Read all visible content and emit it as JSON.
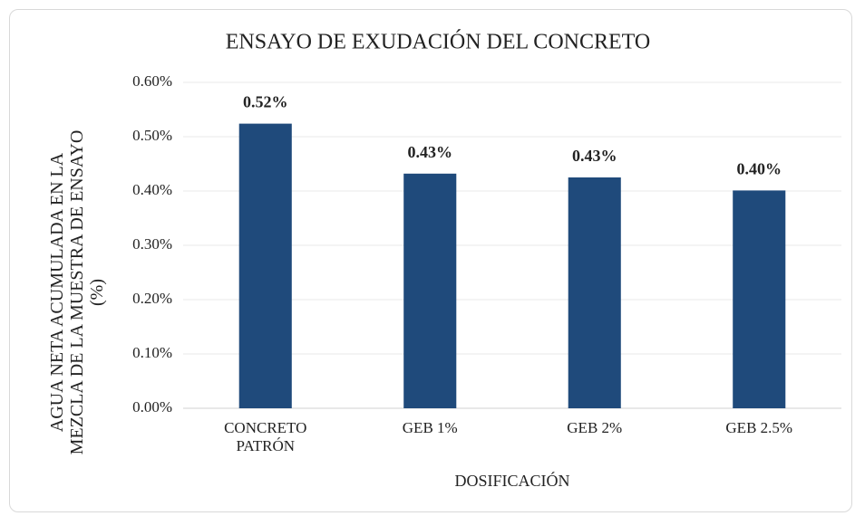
{
  "chart_data": {
    "type": "bar",
    "title": "ENSAYO DE EXUDACIÓN DEL CONCRETO",
    "x_label": "DOSIFICACIÓN",
    "y_label": "AGUA NETA ACUMULADA EN LA MEZCLA DE LA MUESTRA DE ENSAYO (%)",
    "categories": [
      "CONCRETO PATRÓN",
      "GEB 1%",
      "GEB 2%",
      "GEB 2.5%"
    ],
    "values": [
      0.524,
      0.432,
      0.425,
      0.401
    ],
    "value_labels": [
      "0.52%",
      "0.43%",
      "0.43%",
      "0.40%"
    ],
    "color": "#1f4a7b",
    "ylim": [
      0,
      0.6
    ],
    "yticks": [
      {
        "value": 0,
        "label": "0.00%"
      },
      {
        "value": 0.1,
        "label": "0.10%"
      },
      {
        "value": 0.2,
        "label": "0.20%"
      },
      {
        "value": 0.3,
        "label": "0.30%"
      },
      {
        "value": 0.4,
        "label": "0.40%"
      },
      {
        "value": 0.5,
        "label": "0.50%"
      },
      {
        "value": 0.6,
        "label": "0.60%"
      }
    ],
    "grid": true
  }
}
